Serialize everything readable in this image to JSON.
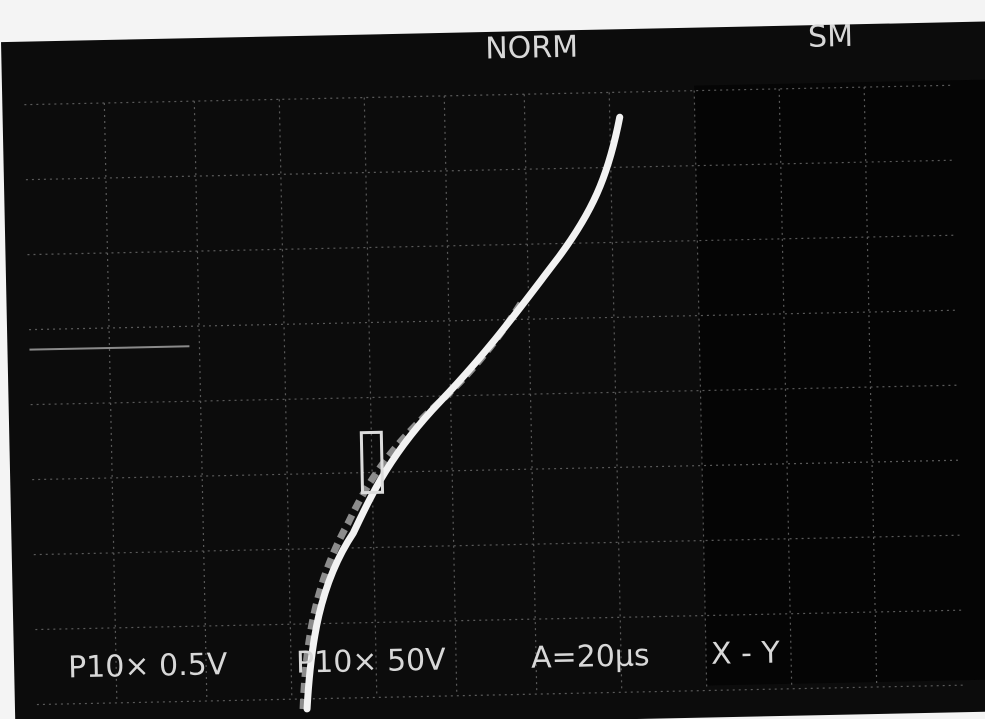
{
  "header": {
    "mode": "NORM",
    "indicator": "SM"
  },
  "footer": {
    "ch1": "P10× 0.5V",
    "ch2": "P10× 50V",
    "timebase": "A=20μs",
    "display": "X - Y"
  }
}
